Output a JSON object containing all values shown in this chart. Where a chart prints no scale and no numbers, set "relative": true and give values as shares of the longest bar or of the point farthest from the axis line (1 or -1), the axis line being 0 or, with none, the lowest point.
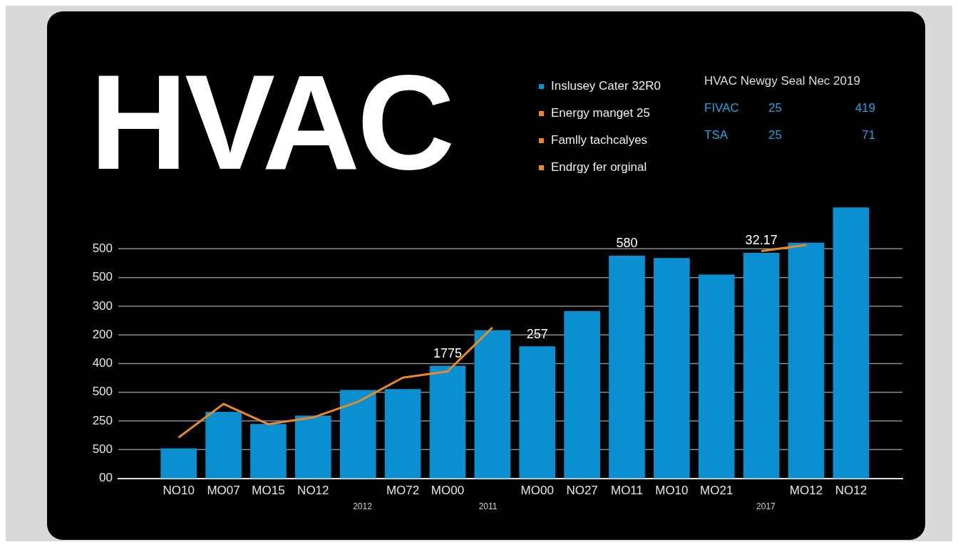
{
  "chart_data": {
    "type": "bar",
    "title": "HVAC",
    "categories": [
      "NO10",
      "MO07",
      "MO15",
      "NO12",
      null,
      "MO72",
      "MO00",
      null,
      "MO00",
      "NO27",
      "MO11",
      "MO10",
      "MO21",
      null,
      "MO12",
      "NO12"
    ],
    "relative": true,
    "series": [
      {
        "name": "Inslusey Cater 32R0",
        "color": "#0a90d0",
        "values": [
          0.11,
          0.245,
          0.2,
          0.231,
          0.326,
          0.329,
          0.415,
          0.547,
          0.487,
          0.617,
          0.822,
          0.813,
          0.752,
          0.832,
          0.87,
          1
        ]
      },
      {
        "name": "Energy manget 25",
        "type": "line",
        "color": "#e8892a",
        "values": [
          0.151,
          0.275,
          0.2,
          0.225,
          0.283,
          0.372,
          0.395,
          0.557,
          null,
          null,
          null,
          null,
          null,
          0.84,
          0.862,
          null
        ]
      },
      {
        "name": "Famlly tachcalyes",
        "type": "line",
        "color": "#e8892a",
        "values": [
          null,
          null,
          null,
          null,
          null,
          null,
          null,
          null,
          null,
          null,
          null,
          null,
          null,
          null,
          null,
          null
        ]
      },
      {
        "name": "Endrgy fer orginal",
        "type": "line",
        "color": "#e8892a",
        "values": [
          null,
          null,
          null,
          null,
          null,
          null,
          null,
          null,
          null,
          null,
          null,
          null,
          null,
          null,
          null,
          null
        ]
      }
    ],
    "grid": "y",
    "legend": "top",
    "annotations": [
      "HVAC Newgy Seal Nec 2019",
      "FIVAC",
      "25",
      "419",
      "TSA",
      "25",
      "71",
      "2012",
      "2011",
      "2017",
      "1775",
      "257",
      "580",
      "32.17",
      "00",
      "500",
      "250",
      "500",
      "400",
      "200",
      "300",
      "500",
      "500"
    ]
  }
}
